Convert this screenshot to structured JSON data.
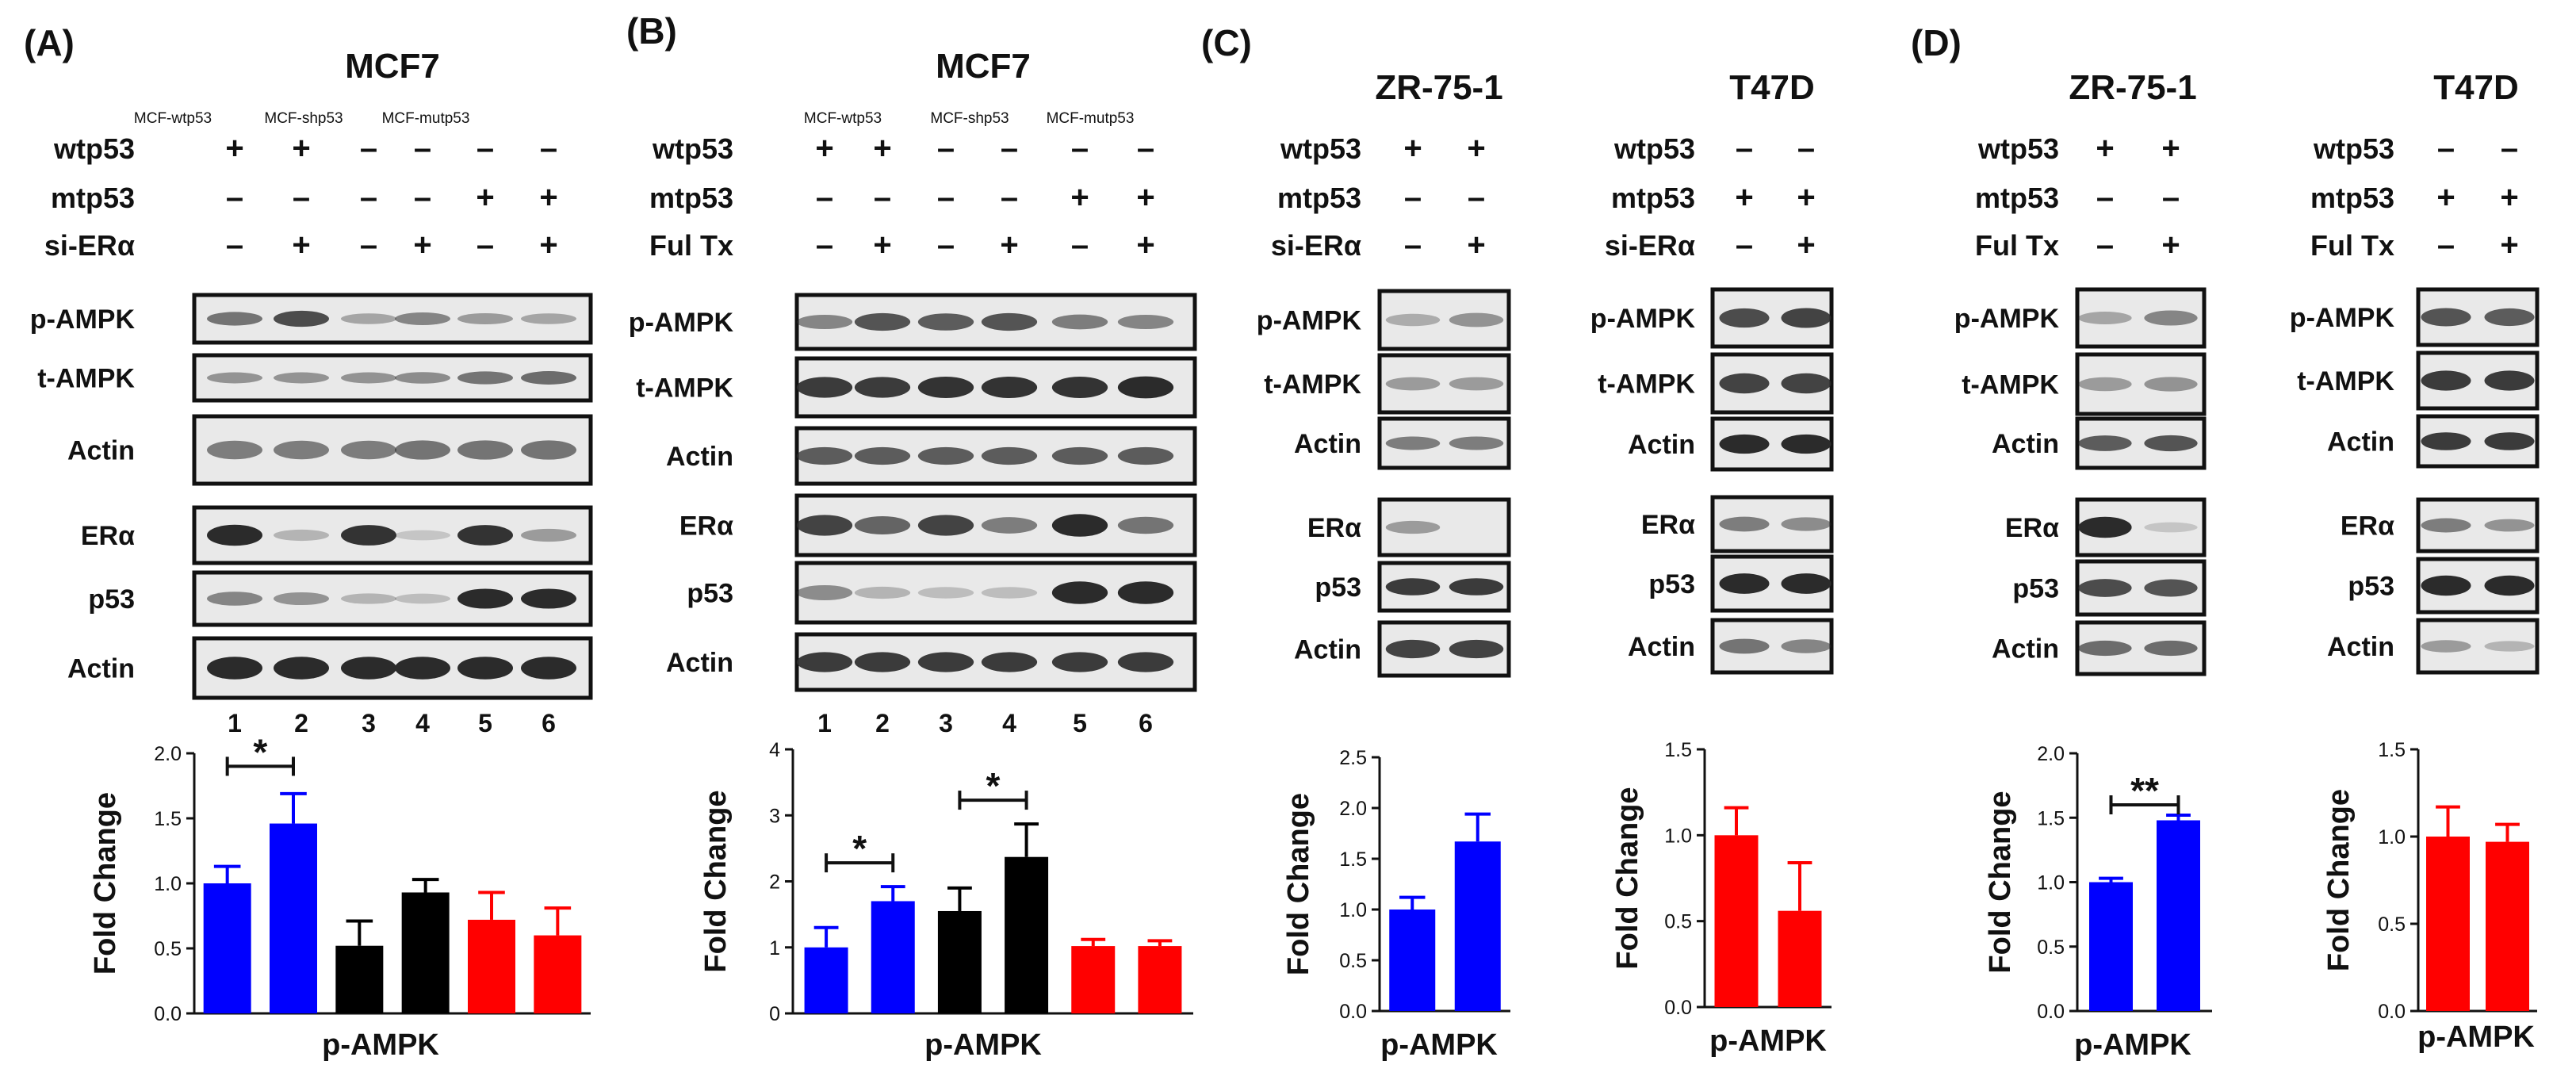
{
  "colors": {
    "blue": "#0000ff",
    "black": "#000000",
    "red": "#ff0000",
    "frame": "#111111"
  },
  "panels": {
    "A": {
      "label": "(A)",
      "title": "MCF7",
      "cell_labels": [
        "MCF-wtp53",
        "MCF-shp53",
        "MCF-mutp53"
      ],
      "conditions": [
        {
          "name": "wtp53",
          "signs": [
            "+",
            "+",
            "–",
            "–",
            "–",
            "–"
          ]
        },
        {
          "name": "mtp53",
          "signs": [
            "–",
            "–",
            "–",
            "–",
            "+",
            "+"
          ]
        },
        {
          "name": "si-ERα",
          "signs": [
            "–",
            "+",
            "–",
            "+",
            "–",
            "+"
          ]
        }
      ],
      "blots": [
        {
          "name": "p-AMPK",
          "intensity": [
            0.55,
            0.8,
            0.25,
            0.45,
            0.3,
            0.25
          ]
        },
        {
          "name": "t-AMPK",
          "intensity": [
            0.35,
            0.35,
            0.35,
            0.4,
            0.55,
            0.6
          ]
        },
        {
          "name": "Actin",
          "intensity": [
            0.5,
            0.5,
            0.5,
            0.55,
            0.55,
            0.55
          ]
        },
        {
          "name": "ERα",
          "intensity": [
            1.0,
            0.15,
            0.95,
            0.05,
            0.95,
            0.3
          ]
        },
        {
          "name": "p53",
          "intensity": [
            0.45,
            0.35,
            0.15,
            0.1,
            1.0,
            1.0
          ]
        },
        {
          "name": "Actin",
          "intensity": [
            1.0,
            1.0,
            1.0,
            1.0,
            1.0,
            1.0
          ]
        }
      ],
      "lane_numbers": [
        "1",
        "2",
        "3",
        "4",
        "5",
        "6"
      ]
    },
    "B": {
      "label": "(B)",
      "title": "MCF7",
      "cell_labels": [
        "MCF-wtp53",
        "MCF-shp53",
        "MCF-mutp53"
      ],
      "conditions": [
        {
          "name": "wtp53",
          "signs": [
            "+",
            "+",
            "–",
            "–",
            "–",
            "–"
          ]
        },
        {
          "name": "mtp53",
          "signs": [
            "–",
            "–",
            "–",
            "–",
            "+",
            "+"
          ]
        },
        {
          "name": "Ful Tx",
          "signs": [
            "–",
            "+",
            "–",
            "+",
            "–",
            "+"
          ]
        }
      ],
      "blots": [
        {
          "name": "p-AMPK",
          "intensity": [
            0.45,
            0.75,
            0.7,
            0.75,
            0.5,
            0.45
          ]
        },
        {
          "name": "t-AMPK",
          "intensity": [
            0.9,
            0.9,
            0.95,
            0.95,
            0.95,
            1.0
          ]
        },
        {
          "name": "Actin",
          "intensity": [
            0.7,
            0.7,
            0.7,
            0.7,
            0.7,
            0.7
          ]
        },
        {
          "name": "ERα",
          "intensity": [
            0.85,
            0.65,
            0.85,
            0.5,
            1.0,
            0.55
          ]
        },
        {
          "name": "p53",
          "intensity": [
            0.4,
            0.15,
            0.1,
            0.1,
            1.0,
            1.0
          ]
        },
        {
          "name": "Actin",
          "intensity": [
            0.9,
            0.9,
            0.9,
            0.9,
            0.9,
            0.9
          ]
        }
      ],
      "lane_numbers": [
        "1",
        "2",
        "3",
        "4",
        "5",
        "6"
      ]
    },
    "C": {
      "label": "(C)",
      "sub": [
        {
          "title": "ZR-75-1",
          "conditions": [
            {
              "name": "wtp53",
              "signs": [
                "+",
                "+"
              ]
            },
            {
              "name": "mtp53",
              "signs": [
                "–",
                "–"
              ]
            },
            {
              "name": "si-ERα",
              "signs": [
                "–",
                "+"
              ]
            }
          ],
          "blots": [
            {
              "name": "p-AMPK",
              "intensity": [
                0.2,
                0.35
              ]
            },
            {
              "name": "t-AMPK",
              "intensity": [
                0.3,
                0.3
              ]
            },
            {
              "name": "Actin",
              "intensity": [
                0.5,
                0.5
              ]
            },
            {
              "name": "ERα",
              "intensity": [
                0.3,
                0.0
              ]
            },
            {
              "name": "p53",
              "intensity": [
                0.9,
                0.9
              ]
            },
            {
              "name": "Actin",
              "intensity": [
                0.85,
                0.85
              ]
            }
          ]
        },
        {
          "title": "T47D",
          "conditions": [
            {
              "name": "wtp53",
              "signs": [
                "–",
                "–"
              ]
            },
            {
              "name": "mtp53",
              "signs": [
                "+",
                "+"
              ]
            },
            {
              "name": "si-ERα",
              "signs": [
                "–",
                "+"
              ]
            }
          ],
          "blots": [
            {
              "name": "p-AMPK",
              "intensity": [
                0.8,
                0.85
              ]
            },
            {
              "name": "t-AMPK",
              "intensity": [
                0.85,
                0.85
              ]
            },
            {
              "name": "Actin",
              "intensity": [
                1.0,
                1.0
              ]
            },
            {
              "name": "ERα",
              "intensity": [
                0.5,
                0.4
              ]
            },
            {
              "name": "p53",
              "intensity": [
                1.0,
                1.0
              ]
            },
            {
              "name": "Actin",
              "intensity": [
                0.55,
                0.45
              ]
            }
          ]
        }
      ]
    },
    "D": {
      "label": "(D)",
      "sub": [
        {
          "title": "ZR-75-1",
          "conditions": [
            {
              "name": "wtp53",
              "signs": [
                "+",
                "+"
              ]
            },
            {
              "name": "mtp53",
              "signs": [
                "–",
                "–"
              ]
            },
            {
              "name": "Ful Tx",
              "signs": [
                "–",
                "+"
              ]
            }
          ],
          "blots": [
            {
              "name": "p-AMPK",
              "intensity": [
                0.25,
                0.45
              ]
            },
            {
              "name": "t-AMPK",
              "intensity": [
                0.3,
                0.35
              ]
            },
            {
              "name": "Actin",
              "intensity": [
                0.7,
                0.75
              ]
            },
            {
              "name": "ERα",
              "intensity": [
                1.0,
                0.05
              ]
            },
            {
              "name": "p53",
              "intensity": [
                0.8,
                0.75
              ]
            },
            {
              "name": "Actin",
              "intensity": [
                0.6,
                0.6
              ]
            }
          ]
        },
        {
          "title": "T47D",
          "conditions": [
            {
              "name": "wtp53",
              "signs": [
                "–",
                "–"
              ]
            },
            {
              "name": "mtp53",
              "signs": [
                "+",
                "+"
              ]
            },
            {
              "name": "Ful Tx",
              "signs": [
                "–",
                "+"
              ]
            }
          ],
          "blots": [
            {
              "name": "p-AMPK",
              "intensity": [
                0.75,
                0.7
              ]
            },
            {
              "name": "t-AMPK",
              "intensity": [
                0.9,
                0.9
              ]
            },
            {
              "name": "Actin",
              "intensity": [
                0.9,
                0.9
              ]
            },
            {
              "name": "ERα",
              "intensity": [
                0.5,
                0.35
              ]
            },
            {
              "name": "p53",
              "intensity": [
                1.0,
                1.0
              ]
            },
            {
              "name": "Actin",
              "intensity": [
                0.3,
                0.15
              ]
            }
          ]
        }
      ]
    }
  },
  "chart_data": [
    {
      "id": "A",
      "type": "bar",
      "xlabel": "p-AMPK",
      "ylabel": "Fold Change",
      "ylim": [
        0,
        2.0
      ],
      "yticks": [
        "0.0",
        "0.5",
        "1.0",
        "1.5",
        "2.0"
      ],
      "categories": [
        "1",
        "2",
        "3",
        "4",
        "5",
        "6"
      ],
      "values": [
        1.0,
        1.46,
        0.52,
        0.93,
        0.72,
        0.6
      ],
      "errors": [
        0.13,
        0.23,
        0.19,
        0.1,
        0.21,
        0.21
      ],
      "colors": [
        "blue",
        "blue",
        "black",
        "black",
        "red",
        "red"
      ],
      "significance": [
        {
          "from": 0,
          "to": 1,
          "label": "*"
        }
      ]
    },
    {
      "id": "B",
      "type": "bar",
      "xlabel": "p-AMPK",
      "ylabel": "Fold Change",
      "ylim": [
        0,
        4
      ],
      "yticks": [
        "0",
        "1",
        "2",
        "3",
        "4"
      ],
      "categories": [
        "1",
        "2",
        "3",
        "4",
        "5",
        "6"
      ],
      "values": [
        1.0,
        1.7,
        1.55,
        2.37,
        1.02,
        1.02
      ],
      "errors": [
        0.3,
        0.22,
        0.35,
        0.5,
        0.1,
        0.08
      ],
      "colors": [
        "blue",
        "blue",
        "black",
        "black",
        "red",
        "red"
      ],
      "significance": [
        {
          "from": 0,
          "to": 1,
          "label": "*"
        },
        {
          "from": 2,
          "to": 3,
          "label": "*"
        }
      ]
    },
    {
      "id": "C-ZR-75-1",
      "type": "bar",
      "xlabel": "p-AMPK",
      "ylabel": "Fold Change",
      "ylim": [
        0,
        2.5
      ],
      "yticks": [
        "0.0",
        "0.5",
        "1.0",
        "1.5",
        "2.0",
        "2.5"
      ],
      "categories": [
        "si-ERα –",
        "si-ERα +"
      ],
      "values": [
        1.0,
        1.67
      ],
      "errors": [
        0.12,
        0.27
      ],
      "colors": [
        "blue",
        "blue"
      ],
      "significance": []
    },
    {
      "id": "C-T47D",
      "type": "bar",
      "xlabel": "p-AMPK",
      "ylabel": "Fold Change",
      "ylim": [
        0,
        1.5
      ],
      "yticks": [
        "0.0",
        "0.5",
        "1.0",
        "1.5"
      ],
      "categories": [
        "si-ERα –",
        "si-ERα +"
      ],
      "values": [
        1.0,
        0.56
      ],
      "errors": [
        0.16,
        0.28
      ],
      "colors": [
        "red",
        "red"
      ],
      "significance": []
    },
    {
      "id": "D-ZR-75-1",
      "type": "bar",
      "xlabel": "p-AMPK",
      "ylabel": "Fold Change",
      "ylim": [
        0,
        2.0
      ],
      "yticks": [
        "0.0",
        "0.5",
        "1.0",
        "1.5",
        "2.0"
      ],
      "categories": [
        "Ful Tx –",
        "Ful Tx +"
      ],
      "values": [
        1.0,
        1.48
      ],
      "errors": [
        0.03,
        0.04
      ],
      "colors": [
        "blue",
        "blue"
      ],
      "significance": [
        {
          "from": 0,
          "to": 1,
          "label": "**"
        }
      ]
    },
    {
      "id": "D-T47D",
      "type": "bar",
      "xlabel": "p-AMPK",
      "ylabel": "Fold Change",
      "ylim": [
        0,
        1.5
      ],
      "yticks": [
        "0.0",
        "0.5",
        "1.0",
        "1.5"
      ],
      "categories": [
        "Ful Tx –",
        "Ful Tx +"
      ],
      "values": [
        1.0,
        0.97
      ],
      "errors": [
        0.17,
        0.1
      ],
      "colors": [
        "red",
        "red"
      ],
      "significance": []
    }
  ]
}
